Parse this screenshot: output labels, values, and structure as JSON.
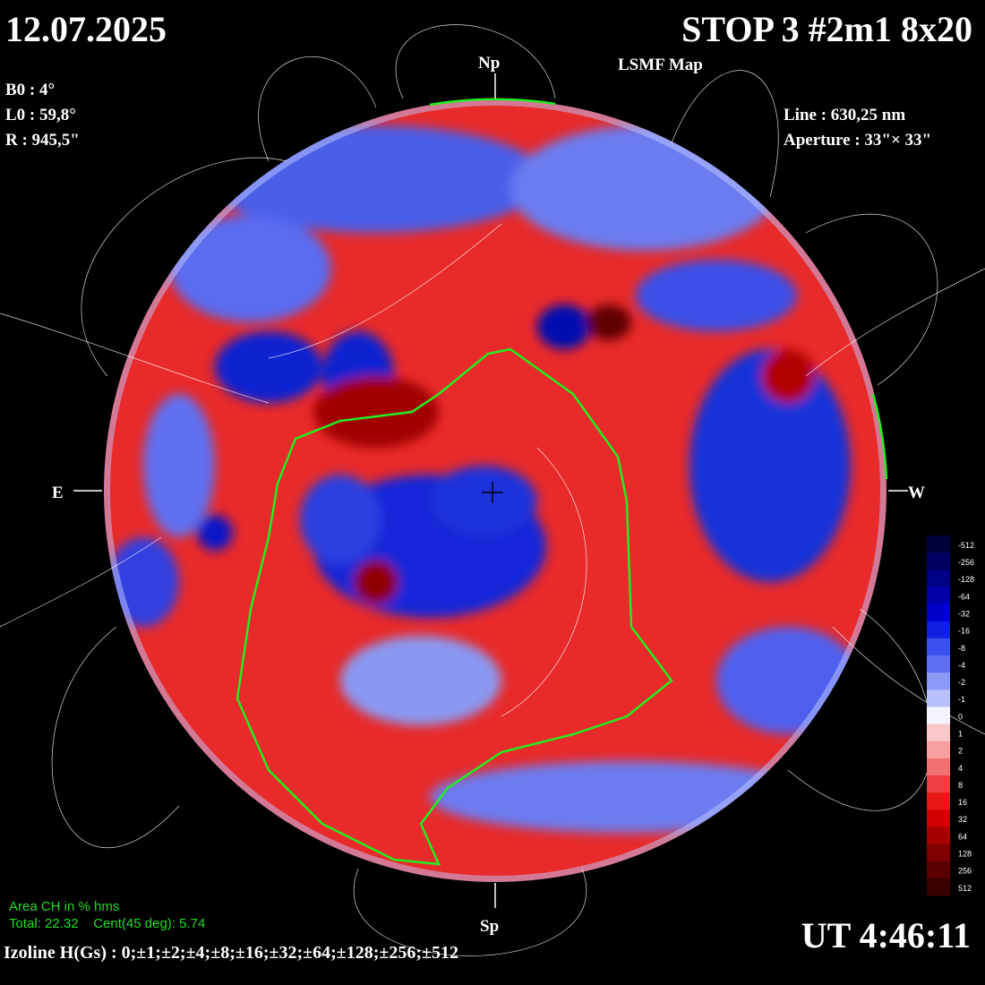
{
  "header": {
    "date": "12.07.2025",
    "title": "STOP 3 #2m1 8x20",
    "subtitle": "LSMF  Map"
  },
  "params": {
    "b0": "B0 : 4°",
    "l0": "L0 : 59,8°",
    "r": "R  : 945,5\"",
    "line": "Line :  630,25 nm",
    "aperture": "Aperture : 33\"× 33\""
  },
  "directions": {
    "north": "Np",
    "south": "Sp",
    "east": "E",
    "west": "W"
  },
  "coronal_hole": {
    "title": "Area CH in % hms",
    "values": "Total: 22.32    Cent(45 deg): 5.74"
  },
  "isolines": "Izoline H(Gs) : 0;±1;±2;±4;±8;±16;±32;±64;±128;±256;±512",
  "time": "UT 4:46:11",
  "colorbar": [
    {
      "label": "-512",
      "color": "#00003a"
    },
    {
      "label": "-256",
      "color": "#000060"
    },
    {
      "label": "-128",
      "color": "#000085"
    },
    {
      "label": "-64",
      "color": "#0000a8"
    },
    {
      "label": "-32",
      "color": "#0000cc"
    },
    {
      "label": "-16",
      "color": "#1020e0"
    },
    {
      "label": "-8",
      "color": "#3a50f0"
    },
    {
      "label": "-4",
      "color": "#6070f4"
    },
    {
      "label": "-2",
      "color": "#8c98f6"
    },
    {
      "label": "-1",
      "color": "#b8c0fa"
    },
    {
      "label": "0",
      "color": "#f4f4ff"
    },
    {
      "label": "1",
      "color": "#fac8c8"
    },
    {
      "label": "2",
      "color": "#f6a0a0"
    },
    {
      "label": "4",
      "color": "#f27070"
    },
    {
      "label": "8",
      "color": "#ee4040"
    },
    {
      "label": "16",
      "color": "#e81818"
    },
    {
      "label": "32",
      "color": "#d00000"
    },
    {
      "label": "64",
      "color": "#a80000"
    },
    {
      "label": "128",
      "color": "#800000"
    },
    {
      "label": "256",
      "color": "#5a0000"
    },
    {
      "label": "512",
      "color": "#3a0000"
    }
  ]
}
